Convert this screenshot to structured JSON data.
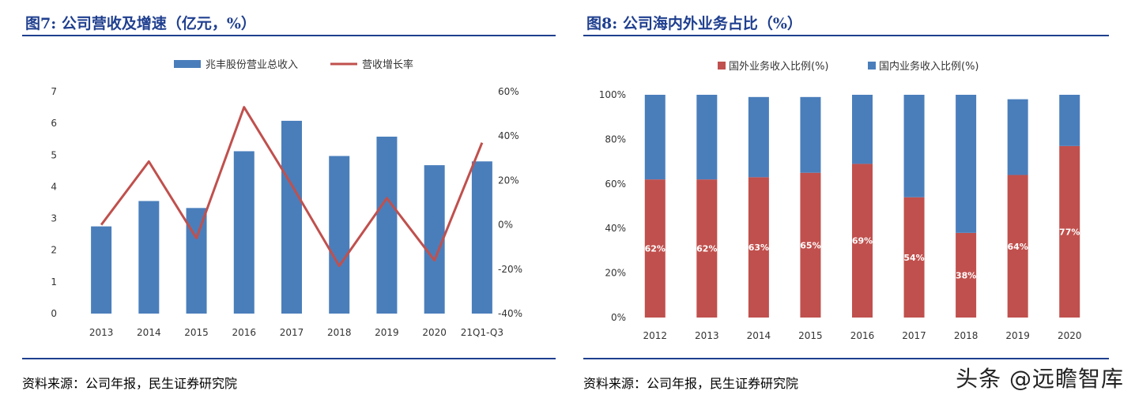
{
  "left": {
    "title": "图7: 公司营收及增速（亿元，%）",
    "source": "资料来源：公司年报，民生证券研究院"
  },
  "right": {
    "title": "图8: 公司海内外业务占比（%）",
    "source": "资料来源：公司年报，民生证券研究院"
  },
  "watermark": "头条 @远瞻智库",
  "chart_data": [
    {
      "type": "bar",
      "categories": [
        "2013",
        "2014",
        "2015",
        "2016",
        "2017",
        "2018",
        "2019",
        "2020",
        "21Q1-Q3"
      ],
      "series": [
        {
          "name": "兆丰股份营业总收入",
          "type": "bar",
          "axis": "left",
          "values": [
            2.75,
            3.55,
            3.33,
            5.12,
            6.08,
            4.97,
            5.58,
            4.68,
            4.8
          ]
        },
        {
          "name": "营收增长率",
          "type": "line",
          "axis": "right",
          "values": [
            0.0,
            28.5,
            -6.0,
            53.0,
            18.0,
            -18.5,
            12.0,
            -16.0,
            37.0
          ]
        }
      ],
      "ylim": [
        0,
        7
      ],
      "y_ticks": [
        "0",
        "1",
        "2",
        "3",
        "4",
        "5",
        "6",
        "7"
      ],
      "y2lim": [
        -40,
        60
      ],
      "y2_ticks": [
        "-40%",
        "-20%",
        "0%",
        "20%",
        "40%",
        "60%"
      ],
      "legend_position": "top",
      "colors": {
        "bar": "#4a7ebb",
        "line": "#c0504d"
      },
      "grid": false
    },
    {
      "type": "bar",
      "stacked": true,
      "categories": [
        "2012",
        "2013",
        "2014",
        "2015",
        "2016",
        "2017",
        "2018",
        "2019",
        "2020"
      ],
      "series": [
        {
          "name": "国外业务收入比例(%)",
          "values": [
            62,
            62,
            63,
            65,
            69,
            54,
            38,
            64,
            77
          ],
          "labels": [
            "62%",
            "62%",
            "63%",
            "65%",
            "69%",
            "54%",
            "38%",
            "64%",
            "77%"
          ]
        },
        {
          "name": "国内业务收入比例(%)",
          "values": [
            38,
            38,
            36,
            34,
            31,
            46,
            62,
            34,
            23
          ]
        }
      ],
      "ylim": [
        0,
        100
      ],
      "y_ticks": [
        "0%",
        "20%",
        "40%",
        "60%",
        "80%",
        "100%"
      ],
      "legend_position": "top",
      "colors": {
        "foreign": "#c0504d",
        "domestic": "#4a7ebb"
      },
      "grid": false
    }
  ]
}
